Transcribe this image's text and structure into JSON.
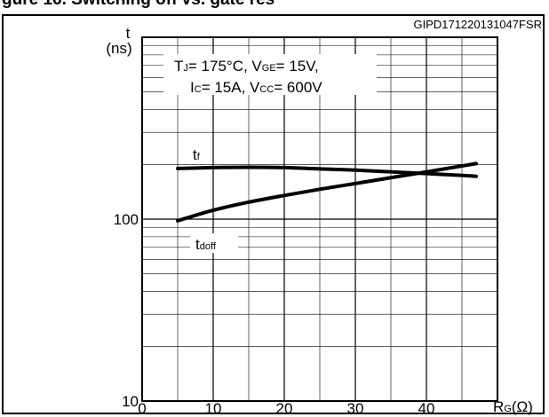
{
  "header": {
    "title": "gure 16. Switching off vs. gate res",
    "code": "GIPD171220131047FSR"
  },
  "conditions": {
    "line1": {
      "tj_main": "T",
      "tj_sub": "J",
      "tj_rest": "= 175°C, V",
      "vge_sub": "GE",
      "vge_rest": "= 15V,"
    },
    "line2": {
      "ic_main": "I",
      "ic_sub": "C",
      "ic_rest": "= 15A, V",
      "vcc_sub": "CC",
      "vcc_rest": "= 600V"
    }
  },
  "chart_data": {
    "type": "line",
    "title": "",
    "yscale": "log",
    "xlim": [
      0,
      50
    ],
    "ylim": [
      10,
      1000
    ],
    "grid": true,
    "xticks": [
      0,
      10,
      20,
      30,
      40
    ],
    "xtick_labels": [
      "0",
      "10",
      "20",
      "30",
      "40"
    ],
    "yticks": [
      10,
      100
    ],
    "ytick_labels": [
      "10",
      "100"
    ],
    "xlabel": {
      "main": "R",
      "sub": "G",
      "unit": "(Ω)"
    },
    "ylabel": {
      "main": "t",
      "unit": "(ns)"
    },
    "series": [
      {
        "name": "tf",
        "label_main": "t",
        "label_sub": "f",
        "x": [
          5,
          10,
          15,
          20,
          25,
          30,
          35,
          40,
          45,
          47
        ],
        "y": [
          190,
          192,
          193,
          192,
          189,
          186,
          182,
          178,
          174,
          172
        ]
      },
      {
        "name": "tdoff",
        "label_main": "t",
        "label_sub": "doff",
        "x": [
          5,
          10,
          15,
          20,
          25,
          30,
          35,
          40,
          45,
          47
        ],
        "y": [
          98,
          112,
          124,
          135,
          146,
          157,
          169,
          182,
          196,
          202
        ]
      }
    ]
  }
}
